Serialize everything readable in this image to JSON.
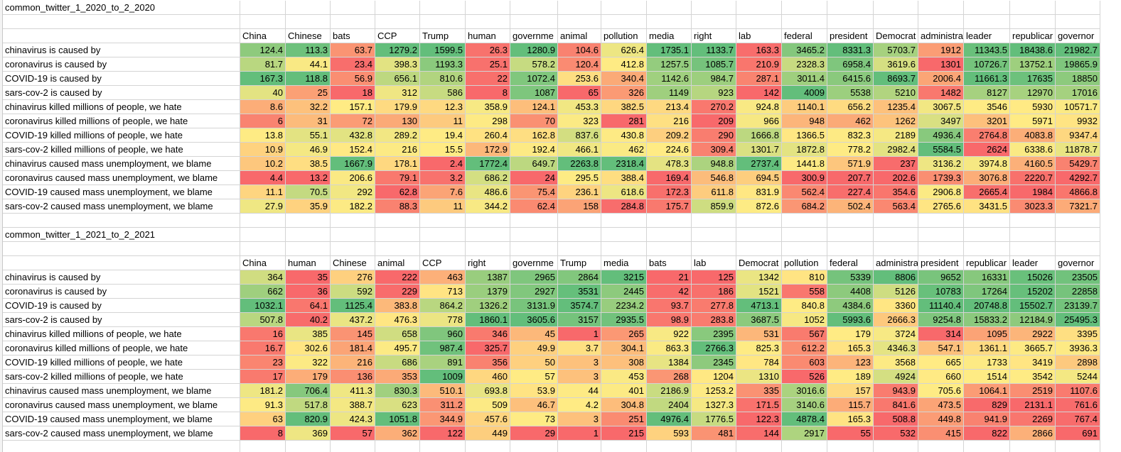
{
  "colors": {
    "low": "#f8696b",
    "mid": "#ffeb84",
    "high": "#63be7b",
    "grid": "#d4d4d4"
  },
  "row_labels": [
    "chinavirus is caused by",
    "coronavirus is caused by",
    "COVID-19 is caused by",
    "sars-cov-2 is caused by",
    "chinavirus killed millions of people, we hate",
    "coronavirus killed millions of people, we hate",
    "COVID-19 killed millions of people, we hate",
    "sars-cov-2 killed millions of people, we hate",
    "chinavirus caused mass unemployment, we blame",
    "coronavirus caused mass unemployment, we blame",
    "COVID-19 caused mass unemployment, we blame",
    "sars-cov-2 caused mass unemployment, we blame"
  ],
  "sections": [
    {
      "title": "common_twitter_1_2020_to_2_2020",
      "columns": [
        "China",
        "Chinese",
        "bats",
        "CCP",
        "Trump",
        "human",
        "governme",
        "animal",
        "pollution",
        "media",
        "right",
        "lab",
        "federal",
        "president",
        "Democrat",
        "administra",
        "leader",
        "republicar",
        "governor"
      ],
      "rows": [
        [
          "124.4",
          "113.3",
          "63.7",
          "1279.2",
          "1599.5",
          "26.3",
          "1280.9",
          "104.6",
          "626.4",
          "1735.1",
          "1133.7",
          "163.3",
          "3465.2",
          "8331.3",
          "5703.7",
          "1912",
          "11343.5",
          "18438.6",
          "21982.7"
        ],
        [
          "81.7",
          "44.1",
          "23.4",
          "398.3",
          "1193.3",
          "25.1",
          "578.2",
          "120.4",
          "412.8",
          "1257.5",
          "1085.7",
          "210.9",
          "2328.3",
          "6958.4",
          "3619.6",
          "1301",
          "10726.7",
          "13752.1",
          "19865.9"
        ],
        [
          "167.3",
          "118.8",
          "56.9",
          "656.1",
          "810.6",
          "22",
          "1072.4",
          "253.6",
          "340.4",
          "1142.6",
          "984.7",
          "287.1",
          "3011.4",
          "6415.6",
          "8693.7",
          "2006.4",
          "11661.3",
          "17635",
          "18850"
        ],
        [
          "40",
          "25",
          "18",
          "312",
          "586",
          "8",
          "1087",
          "65",
          "326",
          "1149",
          "923",
          "142",
          "4009",
          "5538",
          "5210",
          "1482",
          "8127",
          "12970",
          "17016"
        ],
        [
          "8.6",
          "32.2",
          "157.1",
          "179.9",
          "12.3",
          "358.9",
          "124.1",
          "453.3",
          "382.5",
          "213.4",
          "270.2",
          "924.8",
          "1140.1",
          "656.2",
          "1235.4",
          "3067.5",
          "3546",
          "5930",
          "10571.7"
        ],
        [
          "6",
          "31",
          "72",
          "130",
          "11",
          "298",
          "70",
          "323",
          "281",
          "216",
          "209",
          "966",
          "948",
          "462",
          "1262",
          "3497",
          "3201",
          "5971",
          "9932"
        ],
        [
          "13.8",
          "55.1",
          "432.8",
          "289.2",
          "19.4",
          "260.4",
          "162.8",
          "837.6",
          "430.8",
          "209.2",
          "290",
          "1666.8",
          "1366.5",
          "832.3",
          "2189",
          "4936.4",
          "2764.8",
          "4083.8",
          "9347.4"
        ],
        [
          "10.9",
          "46.9",
          "152.4",
          "216",
          "15.5",
          "172.9",
          "192.4",
          "466.1",
          "462",
          "224.6",
          "309.4",
          "1301.7",
          "1872.8",
          "778.2",
          "2982.4",
          "5584.5",
          "2624",
          "6338.6",
          "11878.7"
        ],
        [
          "10.2",
          "38.5",
          "1667.9",
          "178.1",
          "2.4",
          "1772.4",
          "649.7",
          "2263.8",
          "2318.4",
          "478.3",
          "948.8",
          "2737.4",
          "1441.8",
          "571.9",
          "237",
          "3136.2",
          "3974.8",
          "4160.5",
          "5429.7"
        ],
        [
          "4.4",
          "13.2",
          "206.6",
          "79.1",
          "3.2",
          "686.2",
          "24",
          "295.5",
          "388.4",
          "169.4",
          "546.8",
          "694.5",
          "300.9",
          "207.7",
          "202.6",
          "1739.3",
          "3076.8",
          "2220.7",
          "4292.7"
        ],
        [
          "11.1",
          "70.5",
          "292",
          "62.8",
          "7.6",
          "486.6",
          "75.4",
          "236.1",
          "618.6",
          "172.3",
          "611.8",
          "831.9",
          "562.4",
          "227.4",
          "354.6",
          "2906.8",
          "2665.4",
          "1984",
          "4866.8"
        ],
        [
          "27.9",
          "35.9",
          "182.2",
          "88.3",
          "11",
          "344.2",
          "62.4",
          "158",
          "284.8",
          "175.7",
          "859.9",
          "872.6",
          "684.2",
          "502.4",
          "563.4",
          "2765.6",
          "3431.5",
          "3023.3",
          "7321.7"
        ]
      ]
    },
    {
      "title": "common_twitter_1_2021_to_2_2021",
      "columns": [
        "China",
        "human",
        "Chinese",
        "animal",
        "CCP",
        "right",
        "governme",
        "Trump",
        "media",
        "bats",
        "lab",
        "Democrat",
        "pollution",
        "federal",
        "administra",
        "president",
        "republicar",
        "leader",
        "governor"
      ],
      "rows": [
        [
          "364",
          "35",
          "276",
          "222",
          "463",
          "1387",
          "2965",
          "2864",
          "3215",
          "21",
          "125",
          "1342",
          "810",
          "5339",
          "8806",
          "9652",
          "16331",
          "15026",
          "23505"
        ],
        [
          "662",
          "36",
          "592",
          "229",
          "713",
          "1379",
          "2927",
          "3531",
          "2445",
          "42",
          "186",
          "1521",
          "558",
          "4408",
          "5126",
          "10783",
          "17264",
          "15202",
          "22858"
        ],
        [
          "1032.1",
          "64.1",
          "1125.4",
          "383.8",
          "864.2",
          "1326.2",
          "3131.9",
          "3574.7",
          "2234.2",
          "93.7",
          "277.8",
          "4713.1",
          "840.8",
          "4384.6",
          "3360",
          "11140.4",
          "20748.8",
          "15502.7",
          "23139.7"
        ],
        [
          "507.8",
          "40.2",
          "437.2",
          "476.3",
          "778",
          "1860.1",
          "3605.6",
          "3157",
          "2935.5",
          "98.9",
          "283.8",
          "3687.5",
          "1052",
          "5993.6",
          "2666.3",
          "9254.8",
          "15833.2",
          "12184.9",
          "25495.3"
        ],
        [
          "16",
          "385",
          "145",
          "658",
          "960",
          "346",
          "45",
          "1",
          "265",
          "922",
          "2395",
          "531",
          "567",
          "179",
          "3724",
          "314",
          "1095",
          "2922",
          "3395"
        ],
        [
          "16.7",
          "302.6",
          "181.4",
          "495.7",
          "987.4",
          "325.7",
          "49.9",
          "3.7",
          "304.1",
          "863.3",
          "2766.3",
          "825.3",
          "612.2",
          "165.3",
          "4346.3",
          "547.1",
          "1361.1",
          "3665.7",
          "3936.3"
        ],
        [
          "23",
          "322",
          "216",
          "686",
          "891",
          "356",
          "50",
          "3",
          "308",
          "1384",
          "2345",
          "784",
          "603",
          "123",
          "3568",
          "665",
          "1733",
          "3419",
          "2898"
        ],
        [
          "17",
          "179",
          "136",
          "353",
          "1009",
          "460",
          "57",
          "3",
          "453",
          "268",
          "1204",
          "1310",
          "526",
          "189",
          "4924",
          "660",
          "1514",
          "3542",
          "5244"
        ],
        [
          "181.2",
          "706.4",
          "411.3",
          "830.3",
          "510.1",
          "693.8",
          "53.9",
          "44",
          "401",
          "2186.9",
          "1253.2",
          "335",
          "3016.6",
          "157",
          "943.9",
          "705.6",
          "1064.1",
          "2519",
          "1107.6"
        ],
        [
          "91.3",
          "517.8",
          "388.7",
          "623",
          "311.2",
          "509",
          "46.7",
          "4.2",
          "304.8",
          "2404",
          "1327.3",
          "171.5",
          "3140.6",
          "115.7",
          "841.6",
          "473.5",
          "829",
          "2131.1",
          "761.6"
        ],
        [
          "63",
          "820.9",
          "424.3",
          "1051.8",
          "344.9",
          "457.6",
          "73",
          "3",
          "251",
          "4976.4",
          "1776.5",
          "122.3",
          "4878.4",
          "165.3",
          "508.8",
          "449.8",
          "941.9",
          "2269",
          "767.4"
        ],
        [
          "8",
          "369",
          "57",
          "362",
          "122",
          "449",
          "29",
          "1",
          "215",
          "593",
          "481",
          "144",
          "2917",
          "55",
          "532",
          "415",
          "822",
          "2866",
          "691"
        ]
      ]
    }
  ]
}
